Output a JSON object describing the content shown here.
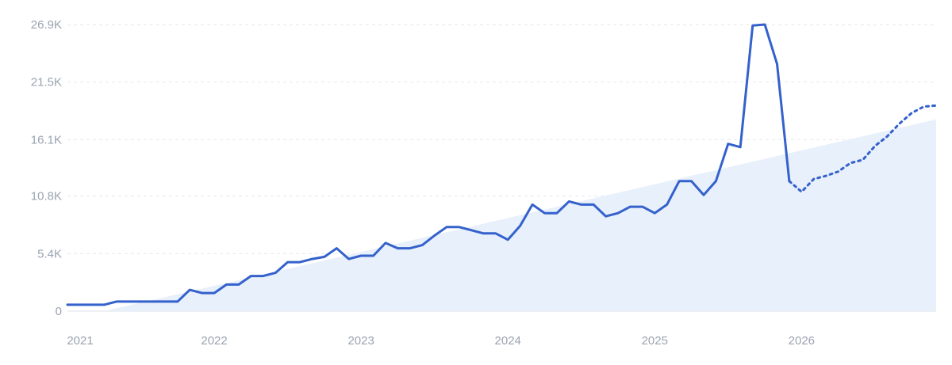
{
  "chart_data": {
    "type": "line",
    "title": "",
    "xlabel": "",
    "ylabel": "",
    "ylim": [
      0,
      26900
    ],
    "xlim": [
      "2021-01",
      "2026-12"
    ],
    "y_ticks": [
      {
        "value": 0,
        "label": "0"
      },
      {
        "value": 5400,
        "label": "5.4K"
      },
      {
        "value": 10800,
        "label": "10.8K"
      },
      {
        "value": 16100,
        "label": "16.1K"
      },
      {
        "value": 21500,
        "label": "21.5K"
      },
      {
        "value": 26900,
        "label": "26.9K"
      }
    ],
    "x_ticks": [
      {
        "value": "2021-01",
        "label": "2021"
      },
      {
        "value": "2022-01",
        "label": "2022"
      },
      {
        "value": "2023-01",
        "label": "2023"
      },
      {
        "value": "2024-01",
        "label": "2024"
      },
      {
        "value": "2025-01",
        "label": "2025"
      },
      {
        "value": "2026-01",
        "label": "2026"
      }
    ],
    "grid": true,
    "colors": {
      "line": "#3461cc",
      "trend_fill": "#e8f0fb",
      "grid": "#e3e7ee",
      "tick": "#9aa3b2"
    },
    "series": [
      {
        "style": "solid",
        "points": [
          {
            "x": "2021-01",
            "y": 600
          },
          {
            "x": "2021-02",
            "y": 600
          },
          {
            "x": "2021-03",
            "y": 600
          },
          {
            "x": "2021-04",
            "y": 600
          },
          {
            "x": "2021-05",
            "y": 900
          },
          {
            "x": "2021-06",
            "y": 900
          },
          {
            "x": "2021-07",
            "y": 900
          },
          {
            "x": "2021-08",
            "y": 900
          },
          {
            "x": "2021-09",
            "y": 900
          },
          {
            "x": "2021-10",
            "y": 900
          },
          {
            "x": "2021-11",
            "y": 2000
          },
          {
            "x": "2021-12",
            "y": 1700
          },
          {
            "x": "2022-01",
            "y": 1700
          },
          {
            "x": "2022-02",
            "y": 2500
          },
          {
            "x": "2022-03",
            "y": 2500
          },
          {
            "x": "2022-04",
            "y": 3300
          },
          {
            "x": "2022-05",
            "y": 3300
          },
          {
            "x": "2022-06",
            "y": 3600
          },
          {
            "x": "2022-07",
            "y": 4600
          },
          {
            "x": "2022-08",
            "y": 4600
          },
          {
            "x": "2022-09",
            "y": 4900
          },
          {
            "x": "2022-10",
            "y": 5100
          },
          {
            "x": "2022-11",
            "y": 5900
          },
          {
            "x": "2022-12",
            "y": 4900
          },
          {
            "x": "2023-01",
            "y": 5200
          },
          {
            "x": "2023-02",
            "y": 5200
          },
          {
            "x": "2023-03",
            "y": 6400
          },
          {
            "x": "2023-04",
            "y": 5900
          },
          {
            "x": "2023-05",
            "y": 5900
          },
          {
            "x": "2023-06",
            "y": 6200
          },
          {
            "x": "2023-07",
            "y": 7100
          },
          {
            "x": "2023-08",
            "y": 7900
          },
          {
            "x": "2023-09",
            "y": 7900
          },
          {
            "x": "2023-10",
            "y": 7600
          },
          {
            "x": "2023-11",
            "y": 7300
          },
          {
            "x": "2023-12",
            "y": 7300
          },
          {
            "x": "2024-01",
            "y": 6700
          },
          {
            "x": "2024-02",
            "y": 8000
          },
          {
            "x": "2024-03",
            "y": 10000
          },
          {
            "x": "2024-04",
            "y": 9200
          },
          {
            "x": "2024-05",
            "y": 9200
          },
          {
            "x": "2024-06",
            "y": 10300
          },
          {
            "x": "2024-07",
            "y": 10000
          },
          {
            "x": "2024-08",
            "y": 10000
          },
          {
            "x": "2024-09",
            "y": 8900
          },
          {
            "x": "2024-10",
            "y": 9200
          },
          {
            "x": "2024-11",
            "y": 9800
          },
          {
            "x": "2024-12",
            "y": 9800
          },
          {
            "x": "2025-01",
            "y": 9200
          },
          {
            "x": "2025-02",
            "y": 10000
          },
          {
            "x": "2025-03",
            "y": 12200
          },
          {
            "x": "2025-04",
            "y": 12200
          },
          {
            "x": "2025-05",
            "y": 10900
          },
          {
            "x": "2025-06",
            "y": 12200
          },
          {
            "x": "2025-07",
            "y": 15700
          },
          {
            "x": "2025-08",
            "y": 15400
          },
          {
            "x": "2025-09",
            "y": 26800
          },
          {
            "x": "2025-10",
            "y": 26900
          },
          {
            "x": "2025-11",
            "y": 23200
          },
          {
            "x": "2025-12",
            "y": 12200
          }
        ]
      },
      {
        "style": "dotted",
        "points": [
          {
            "x": "2025-12",
            "y": 12200
          },
          {
            "x": "2026-01",
            "y": 11200
          },
          {
            "x": "2026-02",
            "y": 12400
          },
          {
            "x": "2026-03",
            "y": 12700
          },
          {
            "x": "2026-04",
            "y": 13100
          },
          {
            "x": "2026-05",
            "y": 13900
          },
          {
            "x": "2026-06",
            "y": 14200
          },
          {
            "x": "2026-07",
            "y": 15500
          },
          {
            "x": "2026-08",
            "y": 16400
          },
          {
            "x": "2026-09",
            "y": 17600
          },
          {
            "x": "2026-10",
            "y": 18600
          },
          {
            "x": "2026-11",
            "y": 19200
          },
          {
            "x": "2026-12",
            "y": 19300
          }
        ]
      }
    ],
    "trend_area": [
      {
        "x": "2021-04",
        "y": 0
      },
      {
        "x": "2026-12",
        "y": 18000
      }
    ]
  }
}
